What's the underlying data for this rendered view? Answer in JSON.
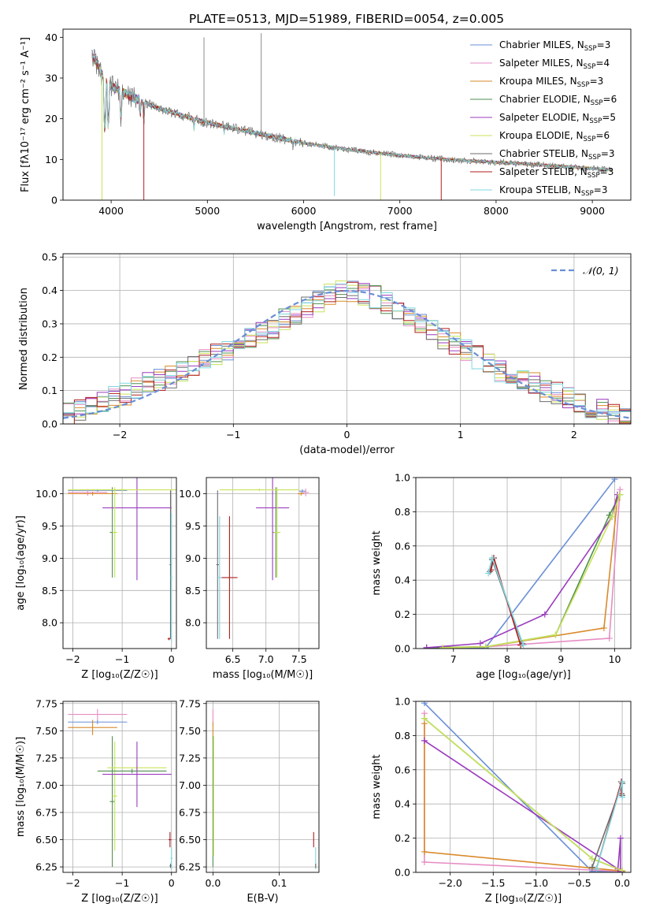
{
  "figure": {
    "title": "PLATE=0513, MJD=51989, FIBERID=0054, z=0.005"
  },
  "colors": {
    "Chabrier MILES": "#6a8fd6",
    "Salpeter MILES": "#e68ec4",
    "Kroupa MILES": "#d98a2b",
    "Chabrier ELODIE": "#4f8f4f",
    "Salpeter ELODIE": "#9b3cbf",
    "Kroupa ELODIE": "#c9e35a",
    "Chabrier STELIB": "#6e6e6e",
    "Salpeter STELIB": "#b01e1e",
    "Kroupa STELIB": "#7fd7e0",
    "normal_curve": "#6a8fd6",
    "grid": "#b0b0b0"
  },
  "chart_data": [
    {
      "id": "spectrum",
      "type": "line",
      "xlabel": "wavelength [Angstrom, rest frame]",
      "ylabel": "Flux [fλ10⁻¹⁷ erg cm⁻² s⁻¹ A⁻¹]",
      "xlim": [
        3500,
        9400
      ],
      "ylim": [
        0,
        42
      ],
      "xticks": [
        4000,
        5000,
        6000,
        7000,
        8000,
        9000
      ],
      "yticks": [
        0,
        10,
        20,
        30,
        40
      ],
      "grid": false,
      "legend_position": "top-right",
      "series": [
        {
          "name": "Chabrier MILES, N",
          "sub": "SSP",
          "suffix": "=3"
        },
        {
          "name": "Salpeter MILES, N",
          "sub": "SSP",
          "suffix": "=4"
        },
        {
          "name": "Kroupa MILES, N",
          "sub": "SSP",
          "suffix": "=3"
        },
        {
          "name": "Chabrier ELODIE, N",
          "sub": "SSP",
          "suffix": "=6"
        },
        {
          "name": "Salpeter ELODIE, N",
          "sub": "SSP",
          "suffix": "=5"
        },
        {
          "name": "Kroupa ELODIE, N",
          "sub": "SSP",
          "suffix": "=6"
        },
        {
          "name": "Chabrier STELIB, N",
          "sub": "SSP",
          "suffix": "=3"
        },
        {
          "name": "Salpeter STELIB, N",
          "sub": "SSP",
          "suffix": "=3"
        },
        {
          "name": "Kroupa STELIB, N",
          "sub": "SSP",
          "suffix": "=3"
        }
      ],
      "continuum": [
        [
          3800,
          36
        ],
        [
          3900,
          31
        ],
        [
          4000,
          28
        ],
        [
          4200,
          25.5
        ],
        [
          4500,
          22.5
        ],
        [
          5000,
          19
        ],
        [
          5500,
          16.5
        ],
        [
          6000,
          14
        ],
        [
          6500,
          12.3
        ],
        [
          7000,
          11
        ],
        [
          7500,
          10
        ],
        [
          8000,
          9.3
        ],
        [
          8500,
          8.6
        ],
        [
          9000,
          7.8
        ],
        [
          9200,
          7.4
        ]
      ],
      "absorption_lines": [
        [
          3934,
          17
        ],
        [
          3969,
          18
        ],
        [
          4102,
          20
        ],
        [
          4304,
          21
        ],
        [
          4340,
          19
        ],
        [
          4861,
          17
        ],
        [
          5175,
          16
        ],
        [
          5890,
          12
        ],
        [
          8500,
          7.8
        ],
        [
          8542,
          7.6
        ],
        [
          8662,
          7.6
        ]
      ],
      "spikes_down": [
        [
          3905,
          0,
          "Kroupa ELODIE"
        ],
        [
          4340,
          0,
          "Salpeter STELIB"
        ],
        [
          6320,
          1,
          "Kroupa STELIB"
        ],
        [
          6800,
          0,
          "Kroupa ELODIE"
        ],
        [
          7430,
          0,
          "Salpeter STELIB"
        ]
      ],
      "spikes_up": [
        [
          4965,
          40,
          "Chabrier STELIB"
        ],
        [
          5560,
          41,
          "Chabrier STELIB"
        ]
      ]
    },
    {
      "id": "residuals",
      "type": "histogram",
      "xlabel": "(data-model)/error",
      "ylabel": "Normed distribution",
      "xlim": [
        -2.5,
        2.5
      ],
      "ylim": [
        0,
        0.51
      ],
      "xticks": [
        -2,
        -1,
        0,
        1,
        2
      ],
      "yticks": [
        0.0,
        0.1,
        0.2,
        0.3,
        0.4,
        0.5
      ],
      "grid": true,
      "legend_position": "top-right",
      "legend_label": "𝒩(0, 1)",
      "bin_width": 0.1,
      "base_profile": [
        0.03,
        0.04,
        0.05,
        0.06,
        0.08,
        0.09,
        0.11,
        0.12,
        0.13,
        0.14,
        0.16,
        0.17,
        0.19,
        0.21,
        0.22,
        0.24,
        0.26,
        0.27,
        0.29,
        0.31,
        0.33,
        0.35,
        0.37,
        0.39,
        0.4,
        0.4,
        0.39,
        0.38,
        0.36,
        0.34,
        0.32,
        0.3,
        0.28,
        0.26,
        0.24,
        0.22,
        0.2,
        0.18,
        0.16,
        0.15,
        0.13,
        0.12,
        0.1,
        0.09,
        0.08,
        0.06,
        0.05,
        0.04,
        0.03,
        0.02
      ],
      "normal": {
        "mu": 0,
        "sigma": 1
      }
    },
    {
      "id": "age-vs-Z",
      "type": "errorbar",
      "xlabel": "Z [log₁₀(Z/Z☉)]",
      "ylabel": "age  [log₁₀(age/yr)]",
      "xlim": [
        -2.2,
        0.1
      ],
      "ylim": [
        7.6,
        10.25
      ],
      "xticks": [
        -2,
        -1,
        0
      ],
      "yticks": [
        8.0,
        8.5,
        9.0,
        9.5,
        10.0
      ],
      "grid": true,
      "points": [
        {
          "series": "Chabrier MILES",
          "x": -1.5,
          "xerr": 0.6,
          "y": 10.05,
          "yerr": 0.02
        },
        {
          "series": "Salpeter MILES",
          "x": -1.7,
          "xerr": 0.4,
          "y": 10.02,
          "yerr": 0.05
        },
        {
          "series": "Kroupa MILES",
          "x": -1.6,
          "xerr": 0.5,
          "y": 10.0,
          "yerr": 0.03
        },
        {
          "series": "Chabrier ELODIE",
          "x": -1.2,
          "xerr": 0.05,
          "y": 9.4,
          "yerr": 0.7
        },
        {
          "series": "Salpeter ELODIE",
          "x": -0.7,
          "xerr": 0.7,
          "y": 9.78,
          "yerr": 1.12
        },
        {
          "series": "Kroupa ELODIE",
          "x": -1.15,
          "xerr": 0.05,
          "y": 9.4,
          "yerr": 0.7
        },
        {
          "series": "Chabrier STELIB",
          "x": -0.02,
          "xerr": 0.02,
          "y": 8.9,
          "yerr": 1.15
        },
        {
          "series": "Salpeter STELIB",
          "x": -0.05,
          "xerr": 0.03,
          "y": 7.75,
          "yerr": 0.02
        },
        {
          "series": "Kroupa STELIB",
          "x": 0.0,
          "xerr": 0.02,
          "y": 8.7,
          "yerr": 1.0
        },
        {
          "series": "Kroupa ELODIE",
          "x": -1.0,
          "xerr": 1.1,
          "y": 10.06,
          "yerr": 0.02
        }
      ]
    },
    {
      "id": "age-vs-mass",
      "type": "errorbar",
      "xlabel": "mass [log₁₀(M/M☉)]",
      "ylabel": "",
      "xlim": [
        6.1,
        7.8
      ],
      "ylim": [
        7.6,
        10.25
      ],
      "xticks": [
        6.5,
        7.0,
        7.5
      ],
      "yticks": [
        8.0,
        8.5,
        9.0,
        9.5,
        10.0
      ],
      "grid": true,
      "points": [
        {
          "series": "Chabrier MILES",
          "x": 7.55,
          "xerr": 0.05,
          "y": 10.04,
          "yerr": 0.03
        },
        {
          "series": "Salpeter MILES",
          "x": 7.6,
          "xerr": 0.05,
          "y": 10.02,
          "yerr": 0.06
        },
        {
          "series": "Kroupa MILES",
          "x": 7.53,
          "xerr": 0.05,
          "y": 10.0,
          "yerr": 0.03
        },
        {
          "series": "Chabrier ELODIE",
          "x": 7.15,
          "xerr": 0.05,
          "y": 9.4,
          "yerr": 0.7
        },
        {
          "series": "Salpeter ELODIE",
          "x": 7.1,
          "xerr": 0.25,
          "y": 9.78,
          "yerr": 1.12
        },
        {
          "series": "Kroupa ELODIE",
          "x": 7.17,
          "xerr": 0.05,
          "y": 9.4,
          "yerr": 0.7
        },
        {
          "series": "Chabrier STELIB",
          "x": 6.27,
          "xerr": 0.02,
          "y": 8.9,
          "yerr": 1.15
        },
        {
          "series": "Salpeter STELIB",
          "x": 6.45,
          "xerr": 0.12,
          "y": 8.7,
          "yerr": 0.95
        },
        {
          "series": "Kroupa STELIB",
          "x": 6.3,
          "xerr": 0.03,
          "y": 8.7,
          "yerr": 0.95
        },
        {
          "series": "Kroupa ELODIE",
          "x": 6.9,
          "xerr": 0.6,
          "y": 10.06,
          "yerr": 0.02
        }
      ]
    },
    {
      "id": "weight-vs-age",
      "type": "line",
      "xlabel": "age  [log₁₀(age/yr)]",
      "ylabel": "mass weight",
      "xlim": [
        6.3,
        10.3
      ],
      "ylim": [
        0,
        1
      ],
      "xticks": [
        7,
        8,
        9,
        10
      ],
      "yticks": [
        0.0,
        0.2,
        0.4,
        0.6,
        0.8,
        1.0
      ],
      "grid": true,
      "series": [
        {
          "name": "Chabrier MILES",
          "x": [
            6.5,
            7.6,
            10.0
          ],
          "y": [
            0.005,
            0.005,
            0.99
          ]
        },
        {
          "name": "Salpeter MILES",
          "x": [
            6.5,
            7.6,
            9.9,
            10.1
          ],
          "y": [
            0.005,
            0.01,
            0.06,
            0.93
          ]
        },
        {
          "name": "Kroupa MILES",
          "x": [
            6.5,
            7.6,
            9.8,
            10.05
          ],
          "y": [
            0.005,
            0.01,
            0.12,
            0.87
          ]
        },
        {
          "name": "Chabrier ELODIE",
          "x": [
            6.5,
            7.6,
            8.9,
            9.9,
            10.1
          ],
          "y": [
            0.005,
            0.01,
            0.08,
            0.78,
            0.9
          ]
        },
        {
          "name": "Salpeter ELODIE",
          "x": [
            6.5,
            7.5,
            8.7,
            9.95,
            10.05
          ],
          "y": [
            0.005,
            0.03,
            0.2,
            0.77,
            0.9
          ]
        },
        {
          "name": "Kroupa ELODIE",
          "x": [
            6.8,
            7.6,
            8.9,
            9.95,
            10.1
          ],
          "y": [
            0.005,
            0.01,
            0.08,
            0.77,
            0.9
          ]
        },
        {
          "name": "Chabrier STELIB",
          "x": [
            7.68,
            7.72,
            8.28
          ],
          "y": [
            0.45,
            0.52,
            0.03
          ]
        },
        {
          "name": "Salpeter STELIB",
          "x": [
            7.7,
            7.75,
            8.25
          ],
          "y": [
            0.46,
            0.53,
            0.02
          ]
        },
        {
          "name": "Kroupa STELIB",
          "x": [
            7.65,
            7.72,
            8.3
          ],
          "y": [
            0.44,
            0.53,
            0.02
          ]
        }
      ]
    },
    {
      "id": "mass-vs-Z",
      "type": "errorbar",
      "xlabel": "Z [log₁₀(Z/Z☉)]",
      "ylabel": "mass [log₁₀(M/M☉)]",
      "xlim": [
        -2.2,
        0.1
      ],
      "ylim": [
        6.2,
        7.77
      ],
      "xticks": [
        -2,
        -1,
        0
      ],
      "yticks": [
        6.25,
        6.5,
        6.75,
        7.0,
        7.25,
        7.5,
        7.75
      ],
      "grid": true,
      "points": [
        {
          "series": "Salpeter MILES",
          "x": -1.5,
          "xerr": 0.6,
          "y": 7.65,
          "yerr": 0.05
        },
        {
          "series": "Chabrier MILES",
          "x": -1.5,
          "xerr": 0.6,
          "y": 7.58,
          "yerr": 0.02
        },
        {
          "series": "Kroupa MILES",
          "x": -1.6,
          "xerr": 0.5,
          "y": 7.53,
          "yerr": 0.07
        },
        {
          "series": "Chabrier ELODIE",
          "x": -1.2,
          "xerr": 0.05,
          "y": 6.85,
          "yerr": 0.6
        },
        {
          "series": "Kroupa ELODIE",
          "x": -1.15,
          "xerr": 0.05,
          "y": 6.9,
          "yerr": 0.5
        },
        {
          "series": "Kroupa ELODIE",
          "x": -0.7,
          "xerr": 0.6,
          "y": 7.16,
          "yerr": 0.02
        },
        {
          "series": "Chabrier ELODIE",
          "x": -0.8,
          "xerr": 0.7,
          "y": 7.13,
          "yerr": 0.02
        },
        {
          "series": "Salpeter ELODIE",
          "x": -0.7,
          "xerr": 0.7,
          "y": 7.1,
          "yerr": 0.3
        },
        {
          "series": "Salpeter STELIB",
          "x": -0.03,
          "xerr": 0.03,
          "y": 6.5,
          "yerr": 0.07
        },
        {
          "series": "Kroupa STELIB",
          "x": 0.0,
          "xerr": 0.02,
          "y": 6.33,
          "yerr": 0.1
        },
        {
          "series": "Chabrier STELIB",
          "x": -0.02,
          "xerr": 0.02,
          "y": 6.26,
          "yerr": 0.02
        }
      ]
    },
    {
      "id": "mass-vs-EBV",
      "type": "errorbar",
      "xlabel": "E(B-V)",
      "ylabel": "",
      "xlim": [
        -0.01,
        0.16
      ],
      "ylim": [
        6.2,
        7.77
      ],
      "xticks": [
        0.0,
        0.1
      ],
      "yticks": [
        6.25,
        6.5,
        6.75,
        7.0,
        7.25,
        7.5,
        7.75
      ],
      "grid": true,
      "points": [
        {
          "series": "Salpeter MILES",
          "x": 0.0,
          "xerr": 0.0,
          "y": 7.62,
          "yerr": 0.08
        },
        {
          "series": "Kroupa MILES",
          "x": 0.0,
          "xerr": 0.0,
          "y": 7.5,
          "yerr": 0.08
        },
        {
          "series": "Chabrier ELODIE",
          "x": 0.0,
          "xerr": 0.0,
          "y": 6.85,
          "yerr": 0.6
        },
        {
          "series": "Kroupa ELODIE",
          "x": 0.001,
          "xerr": 0.0,
          "y": 6.9,
          "yerr": 0.55
        },
        {
          "series": "Salpeter STELIB",
          "x": 0.152,
          "xerr": 0.0,
          "y": 6.5,
          "yerr": 0.07
        },
        {
          "series": "Kroupa STELIB",
          "x": 0.155,
          "xerr": 0.0,
          "y": 6.33,
          "yerr": 0.1
        },
        {
          "series": "Chabrier STELIB",
          "x": 0.155,
          "xerr": 0.0,
          "y": 6.26,
          "yerr": 0.02
        }
      ]
    },
    {
      "id": "weight-vs-Z",
      "type": "line",
      "xlabel": "Z [log₁₀(Z/Z☉)]",
      "ylabel": "mass weight",
      "xlim": [
        -2.4,
        0.1
      ],
      "ylim": [
        0,
        1
      ],
      "xticks": [
        -2.0,
        -1.5,
        -1.0,
        -0.5,
        0.0
      ],
      "yticks": [
        0.0,
        0.2,
        0.4,
        0.6,
        0.8,
        1.0
      ],
      "grid": true,
      "series": [
        {
          "name": "Chabrier MILES",
          "x": [
            -2.3,
            -0.35,
            0.0
          ],
          "y": [
            0.99,
            0.005,
            0.005
          ]
        },
        {
          "name": "Salpeter MILES",
          "x": [
            -2.3,
            -2.3,
            0.0
          ],
          "y": [
            0.93,
            0.06,
            0.005
          ]
        },
        {
          "name": "Kroupa MILES",
          "x": [
            -2.3,
            -2.3,
            -0.05,
            0.0
          ],
          "y": [
            0.87,
            0.12,
            0.01,
            0.005
          ]
        },
        {
          "name": "Chabrier ELODIE",
          "x": [
            -2.3,
            -0.35,
            0.0
          ],
          "y": [
            0.9,
            0.08,
            0.01
          ]
        },
        {
          "name": "Salpeter ELODIE",
          "x": [
            -2.3,
            -0.05,
            -0.02,
            -0.02
          ],
          "y": [
            0.77,
            0.02,
            0.2,
            0.005
          ]
        },
        {
          "name": "Kroupa ELODIE",
          "x": [
            -2.3,
            -0.35,
            0.0
          ],
          "y": [
            0.9,
            0.08,
            0.01
          ]
        },
        {
          "name": "Chabrier STELIB",
          "x": [
            0.0,
            0.0,
            -0.35
          ],
          "y": [
            0.45,
            0.52,
            0.03
          ]
        },
        {
          "name": "Salpeter STELIB",
          "x": [
            -0.01,
            -0.01,
            -0.3
          ],
          "y": [
            0.46,
            0.53,
            0.02
          ]
        },
        {
          "name": "Kroupa STELIB",
          "x": [
            0.0,
            0.0,
            -0.3
          ],
          "y": [
            0.44,
            0.53,
            0.02
          ]
        }
      ]
    }
  ]
}
